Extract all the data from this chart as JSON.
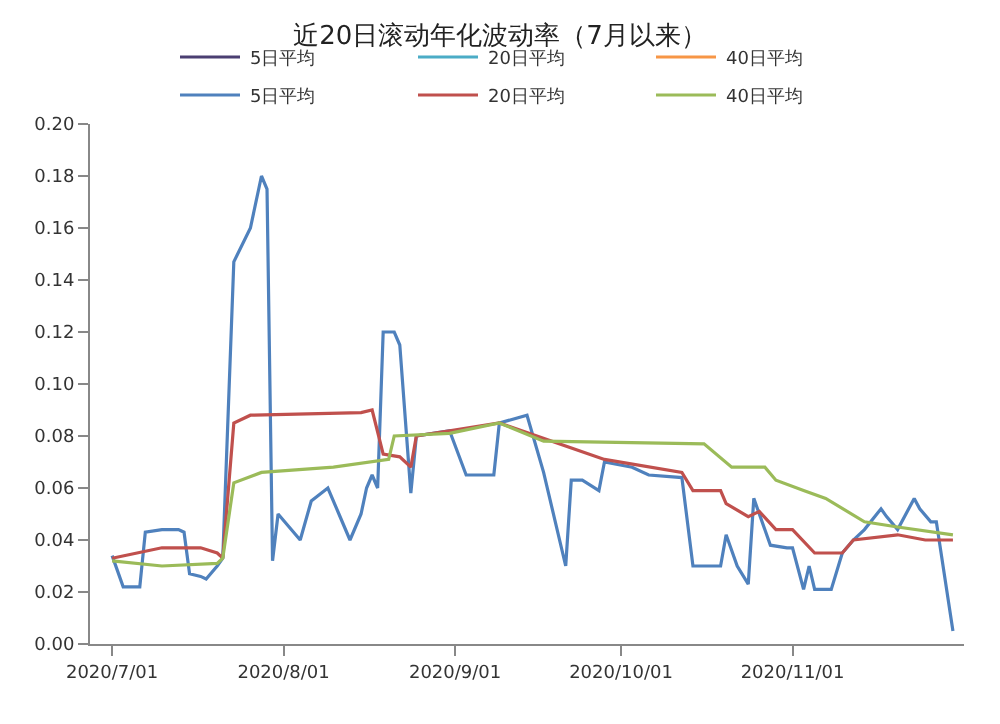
{
  "chart_data": {
    "type": "line",
    "title": "近20日滚动年化波动率（7月以来）",
    "xlim": [
      "2020-06-27",
      "2020-12-02"
    ],
    "xticks": [
      {
        "value": "2020-07-01",
        "label": "2020/7/01"
      },
      {
        "value": "2020-08-01",
        "label": "2020/8/01"
      },
      {
        "value": "2020-09-01",
        "label": "2020/9/01"
      },
      {
        "value": "2020-10-01",
        "label": "2020/10/01"
      },
      {
        "value": "2020-11-01",
        "label": "2020/11/01"
      }
    ],
    "ylim": [
      0,
      0.2
    ],
    "yticks": [
      {
        "value": 0,
        "label": "0.00"
      },
      {
        "value": 0.02,
        "label": "0.02"
      },
      {
        "value": 0.04,
        "label": "0.04"
      },
      {
        "value": 0.06,
        "label": "0.06"
      },
      {
        "value": 0.08,
        "label": "0.08"
      },
      {
        "value": 0.1,
        "label": "0.10"
      },
      {
        "value": 0.12,
        "label": "0.12"
      },
      {
        "value": 0.14,
        "label": "0.14"
      },
      {
        "value": 0.16,
        "label": "0.16"
      },
      {
        "value": 0.18,
        "label": "0.18"
      },
      {
        "value": 0.2,
        "label": "0.20"
      }
    ],
    "legend": "top",
    "marker": "none",
    "line_style": "solid",
    "series": [
      {
        "name": "5日平均",
        "color": "#4b3f72"
      },
      {
        "name": "20日平均",
        "color": "#4bacc6"
      },
      {
        "name": "40日平均",
        "color": "#f79646"
      },
      {
        "name": "5日平均",
        "color": "#4f81bd",
        "x": [
          "2020-07-01",
          "2020-07-03",
          "2020-07-06",
          "2020-07-07",
          "2020-07-10",
          "2020-07-13",
          "2020-07-14",
          "2020-07-15",
          "2020-07-17",
          "2020-07-18",
          "2020-07-20",
          "2020-07-21",
          "2020-07-23",
          "2020-07-26",
          "2020-07-28",
          "2020-07-29",
          "2020-07-30",
          "2020-07-31",
          "2020-08-02",
          "2020-08-04",
          "2020-08-06",
          "2020-08-09",
          "2020-08-11",
          "2020-08-13",
          "2020-08-15",
          "2020-08-16",
          "2020-08-17",
          "2020-08-18",
          "2020-08-19",
          "2020-08-21",
          "2020-08-22",
          "2020-08-24",
          "2020-08-25",
          "2020-08-31",
          "2020-09-03",
          "2020-09-08",
          "2020-09-09",
          "2020-09-14",
          "2020-09-17",
          "2020-09-21",
          "2020-09-22",
          "2020-09-24",
          "2020-09-27",
          "2020-09-28",
          "2020-10-03",
          "2020-10-06",
          "2020-10-12",
          "2020-10-14",
          "2020-10-19",
          "2020-10-20",
          "2020-10-22",
          "2020-10-24",
          "2020-10-25",
          "2020-10-28",
          "2020-10-31",
          "2020-11-01",
          "2020-11-03",
          "2020-11-04",
          "2020-11-05",
          "2020-11-08",
          "2020-11-10",
          "2020-11-12",
          "2020-11-14",
          "2020-11-17",
          "2020-11-18",
          "2020-11-20",
          "2020-11-23",
          "2020-11-24",
          "2020-11-26",
          "2020-11-27",
          "2020-11-30"
        ],
        "values": [
          0.034,
          0.022,
          0.022,
          0.043,
          0.044,
          0.044,
          0.043,
          0.027,
          0.026,
          0.025,
          0.03,
          0.033,
          0.147,
          0.16,
          0.18,
          0.175,
          0.032,
          0.05,
          0.045,
          0.04,
          0.055,
          0.06,
          0.05,
          0.04,
          0.05,
          0.06,
          0.065,
          0.06,
          0.12,
          0.12,
          0.115,
          0.058,
          0.08,
          0.082,
          0.065,
          0.065,
          0.085,
          0.088,
          0.066,
          0.03,
          0.063,
          0.063,
          0.059,
          0.07,
          0.068,
          0.065,
          0.064,
          0.03,
          0.03,
          0.042,
          0.03,
          0.023,
          0.056,
          0.038,
          0.037,
          0.037,
          0.021,
          0.03,
          0.021,
          0.021,
          0.035,
          0.04,
          0.044,
          0.052,
          0.049,
          0.044,
          0.056,
          0.052,
          0.047,
          0.047,
          0.005
        ]
      },
      {
        "name": "20日平均",
        "color": "#c0504d",
        "x": [
          "2020-07-01",
          "2020-07-10",
          "2020-07-17",
          "2020-07-20",
          "2020-07-21",
          "2020-07-23",
          "2020-07-26",
          "2020-08-15",
          "2020-08-17",
          "2020-08-19",
          "2020-08-22",
          "2020-08-24",
          "2020-08-25",
          "2020-08-31",
          "2020-09-09",
          "2020-09-28",
          "2020-10-12",
          "2020-10-14",
          "2020-10-19",
          "2020-10-20",
          "2020-10-24",
          "2020-10-26",
          "2020-10-29",
          "2020-11-01",
          "2020-11-05",
          "2020-11-10",
          "2020-11-12",
          "2020-11-20",
          "2020-11-25",
          "2020-11-30"
        ],
        "values": [
          0.033,
          0.037,
          0.037,
          0.035,
          0.033,
          0.085,
          0.088,
          0.089,
          0.09,
          0.073,
          0.072,
          0.068,
          0.08,
          0.082,
          0.085,
          0.071,
          0.066,
          0.059,
          0.059,
          0.054,
          0.049,
          0.051,
          0.044,
          0.044,
          0.035,
          0.035,
          0.04,
          0.042,
          0.04,
          0.04
        ]
      },
      {
        "name": "40日平均",
        "color": "#9bbb59",
        "x": [
          "2020-07-01",
          "2020-07-10",
          "2020-07-20",
          "2020-07-21",
          "2020-07-23",
          "2020-07-28",
          "2020-08-10",
          "2020-08-20",
          "2020-08-21",
          "2020-08-31",
          "2020-09-09",
          "2020-09-17",
          "2020-10-16",
          "2020-10-21",
          "2020-10-27",
          "2020-10-29",
          "2020-11-03",
          "2020-11-07",
          "2020-11-14",
          "2020-11-20",
          "2020-11-30"
        ],
        "values": [
          0.032,
          0.03,
          0.031,
          0.033,
          0.062,
          0.066,
          0.068,
          0.071,
          0.08,
          0.081,
          0.085,
          0.078,
          0.077,
          0.068,
          0.068,
          0.063,
          0.059,
          0.056,
          0.047,
          0.045,
          0.042
        ]
      }
    ]
  }
}
